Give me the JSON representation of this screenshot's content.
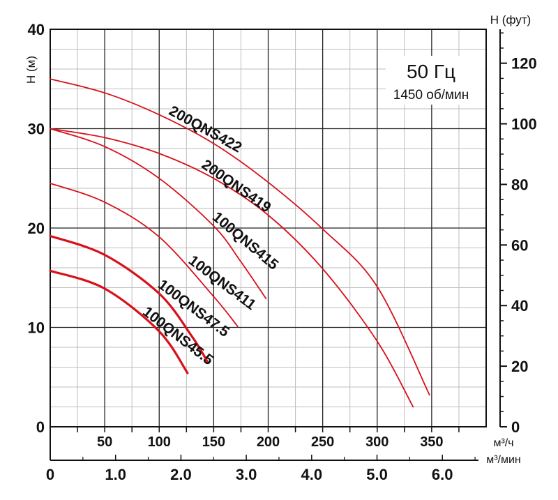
{
  "chart_data": {
    "type": "line",
    "annotation": {
      "frequency": "50 Гц",
      "speed": "1450 об/мин"
    },
    "y_left": {
      "label": "H (м)",
      "range": [
        0,
        40
      ],
      "ticks": [
        "0",
        "10",
        "20",
        "30",
        "40"
      ],
      "tick_values": [
        0,
        10,
        20,
        30,
        40
      ]
    },
    "y_right": {
      "label": "H (фут)",
      "range": [
        0,
        131.2
      ],
      "ticks": [
        "0",
        "20",
        "40",
        "60",
        "80",
        "100",
        "120"
      ],
      "tick_values": [
        0,
        20,
        40,
        60,
        80,
        100,
        120
      ]
    },
    "x_top": {
      "label": "м³/ч",
      "range": [
        0,
        400
      ],
      "ticks": [
        "50",
        "100",
        "150",
        "200",
        "250",
        "300",
        "350"
      ],
      "tick_values": [
        50,
        100,
        150,
        200,
        250,
        300,
        350
      ]
    },
    "x_bottom": {
      "label": "м³/мин",
      "range": [
        0,
        6.67
      ],
      "ticks": [
        "0",
        "1.0",
        "2.0",
        "3.0",
        "4.0",
        "5.0",
        "6.0"
      ],
      "tick_values": [
        0,
        1,
        2,
        3,
        4,
        5,
        6
      ]
    },
    "grid": true,
    "series_color": "#d8101a",
    "series": [
      {
        "name": "200QNS422",
        "x": [
          0,
          50,
          100,
          150,
          200,
          250,
          300,
          348
        ],
        "y": [
          35,
          33.6,
          31.4,
          28.5,
          24.6,
          19.9,
          14.1,
          3.2
        ]
      },
      {
        "name": "200QNS419",
        "x": [
          0,
          50,
          100,
          150,
          200,
          250,
          300,
          333
        ],
        "y": [
          30,
          29.1,
          27.5,
          25,
          21.3,
          15.9,
          8.6,
          2
        ]
      },
      {
        "name": "100QNS415",
        "x": [
          0,
          50,
          100,
          150,
          175,
          198
        ],
        "y": [
          30,
          28.2,
          25,
          20.2,
          16.6,
          12.9
        ]
      },
      {
        "name": "100QNS411",
        "x": [
          0,
          50,
          100,
          150,
          172
        ],
        "y": [
          24.5,
          22.6,
          19.1,
          13.1,
          10.1
        ]
      },
      {
        "name": "100QNS47.5",
        "x": [
          0,
          50,
          100,
          130,
          144
        ],
        "y": [
          19.2,
          17.3,
          13.4,
          9.1,
          6.6
        ]
      },
      {
        "name": "100QNS45.5",
        "x": [
          0,
          50,
          100,
          126
        ],
        "y": [
          15.7,
          13.9,
          9.6,
          5.4
        ]
      }
    ]
  }
}
